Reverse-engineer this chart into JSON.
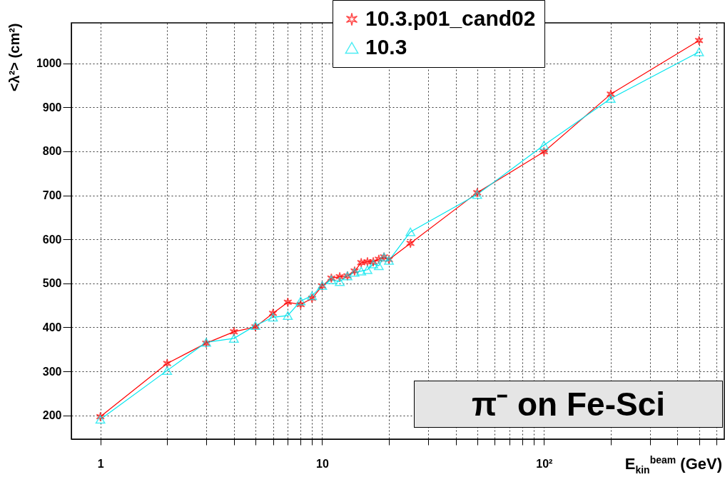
{
  "chart_data": {
    "type": "line",
    "xlabel": "E$_{kin}$$^{beam}$ (GeV)",
    "ylabel": "<λ²> (cm²)",
    "x": [
      1,
      2,
      3,
      4,
      5,
      6,
      7,
      8,
      9,
      10,
      11,
      12,
      13,
      14,
      15,
      16,
      17,
      18,
      19,
      20,
      25,
      50,
      100,
      200,
      500
    ],
    "series": [
      {
        "name": "10.3.p01_cand02",
        "color": "#ff0000",
        "marker": "cross",
        "values": [
          197,
          318,
          364,
          390,
          401,
          432,
          457,
          452,
          466,
          494,
          512,
          515,
          517,
          528,
          547,
          549,
          549,
          555,
          560,
          554,
          591,
          706,
          799,
          930,
          1052
        ]
      },
      {
        "name": "10.3",
        "color": "#00e5ee",
        "marker": "triangle",
        "values": [
          191,
          302,
          366,
          375,
          404,
          423,
          427,
          460,
          472,
          495,
          508,
          504,
          517,
          525,
          528,
          531,
          544,
          540,
          560,
          552,
          617,
          702,
          814,
          920,
          1026
        ]
      }
    ],
    "log": "x",
    "xlim": [
      0.74,
      650
    ],
    "ylim": [
      146,
      1092
    ],
    "xticks": [
      1,
      {
        "value": 2,
        "label": null
      },
      {
        "value": 3,
        "label": null
      },
      {
        "value": 4,
        "label": null
      },
      {
        "value": 5,
        "label": null
      },
      {
        "value": 6,
        "label": null
      },
      {
        "value": 7,
        "label": null
      },
      {
        "value": 8,
        "label": null
      },
      {
        "value": 9,
        "label": null
      },
      10,
      {
        "value": 20,
        "label": null
      },
      {
        "value": 30,
        "label": null
      },
      {
        "value": 40,
        "label": null
      },
      {
        "value": 50,
        "label": null
      },
      {
        "value": 60,
        "label": null
      },
      {
        "value": 70,
        "label": null
      },
      {
        "value": 80,
        "label": null
      },
      {
        "value": 90,
        "label": null
      },
      {
        "value": 100,
        "label": "10²"
      },
      {
        "value": 200,
        "label": null
      },
      {
        "value": 300,
        "label": null
      },
      {
        "value": 400,
        "label": null
      },
      {
        "value": 500,
        "label": null
      },
      {
        "value": 600,
        "label": null
      }
    ],
    "yticks": [
      200,
      300,
      400,
      500,
      600,
      700,
      800,
      900,
      1000
    ],
    "grid": true,
    "legend": "top right",
    "annotations": [
      "π⁻ on Fe-Sci"
    ]
  }
}
